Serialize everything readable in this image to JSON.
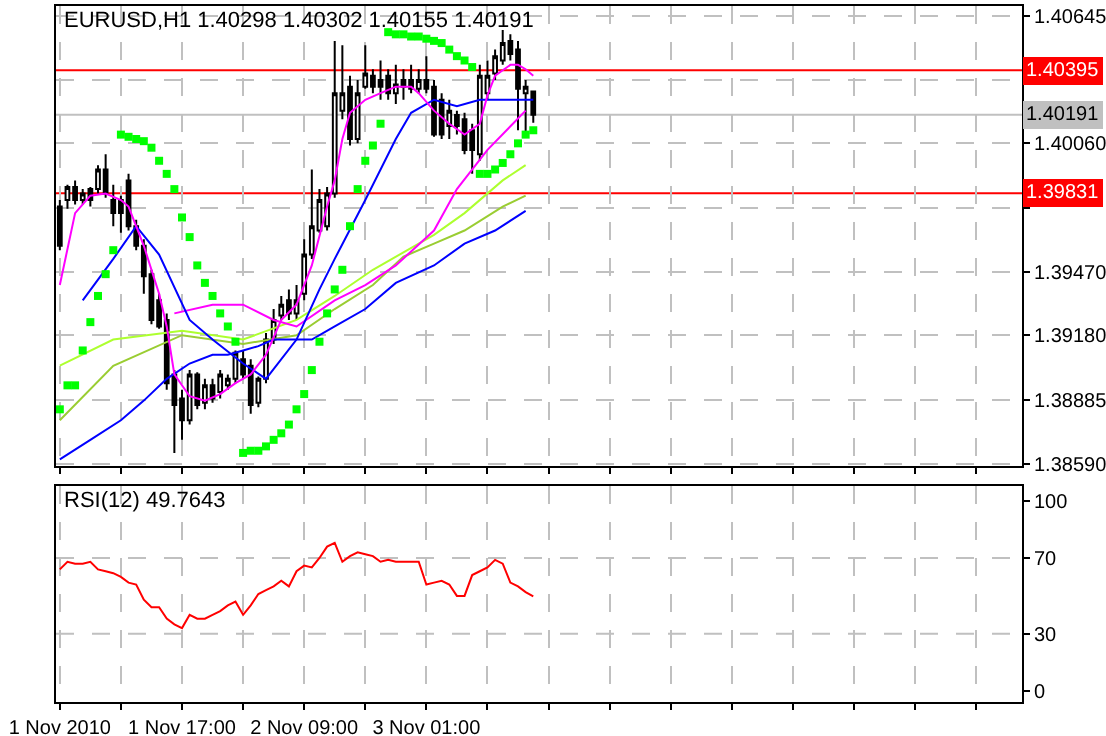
{
  "chart_data": [
    {
      "type": "candlestick",
      "title": "EURUSD,H1 1.40298 1.40302 1.40155 1.40191",
      "color": "#000000",
      "x": [
        "2010-11-01T00:00",
        "2010-11-01T01:00",
        "2010-11-01T02:00",
        "2010-11-01T03:00",
        "2010-11-01T04:00",
        "2010-11-01T05:00",
        "2010-11-01T06:00",
        "2010-11-01T07:00",
        "2010-11-01T08:00",
        "2010-11-01T09:00",
        "2010-11-01T10:00",
        "2010-11-01T11:00",
        "2010-11-01T12:00",
        "2010-11-01T13:00",
        "2010-11-01T14:00",
        "2010-11-01T15:00",
        "2010-11-01T16:00",
        "2010-11-01T17:00",
        "2010-11-01T18:00",
        "2010-11-01T19:00",
        "2010-11-01T20:00",
        "2010-11-01T21:00",
        "2010-11-01T22:00",
        "2010-11-01T23:00",
        "2010-11-02T00:00",
        "2010-11-02T01:00",
        "2010-11-02T02:00",
        "2010-11-02T03:00",
        "2010-11-02T04:00",
        "2010-11-02T05:00",
        "2010-11-02T06:00",
        "2010-11-02T07:00",
        "2010-11-02T08:00",
        "2010-11-02T09:00",
        "2010-11-02T10:00",
        "2010-11-02T11:00",
        "2010-11-02T12:00",
        "2010-11-02T13:00",
        "2010-11-02T14:00",
        "2010-11-02T15:00",
        "2010-11-02T16:00",
        "2010-11-02T17:00",
        "2010-11-02T18:00",
        "2010-11-02T19:00",
        "2010-11-02T20:00",
        "2010-11-02T21:00",
        "2010-11-02T22:00",
        "2010-11-02T23:00",
        "2010-11-03T00:00",
        "2010-11-03T01:00",
        "2010-11-03T02:00",
        "2010-11-03T03:00",
        "2010-11-03T04:00",
        "2010-11-03T05:00",
        "2010-11-03T06:00",
        "2010-11-03T07:00",
        "2010-11-03T08:00",
        "2010-11-03T09:00",
        "2010-11-03T10:00",
        "2010-11-03T11:00",
        "2010-11-03T12:00",
        "2010-11-03T13:00",
        "2010-11-03T14:00"
      ],
      "ohlc": [
        [
          1.3977,
          1.398,
          1.3957,
          1.3959
        ],
        [
          1.398,
          1.3987,
          1.3976,
          1.3986
        ],
        [
          1.3986,
          1.3989,
          1.3978,
          1.398
        ],
        [
          1.398,
          1.3985,
          1.3978,
          1.3983
        ],
        [
          1.3985,
          1.3986,
          1.3977,
          1.398
        ],
        [
          1.3985,
          1.3996,
          1.3983,
          1.3994
        ],
        [
          1.3994,
          1.4001,
          1.3981,
          1.3983
        ],
        [
          1.398,
          1.3987,
          1.3968,
          1.3974
        ],
        [
          1.398,
          1.3982,
          1.3965,
          1.3974
        ],
        [
          1.3989,
          1.3992,
          1.3966,
          1.3968
        ],
        [
          1.3968,
          1.3971,
          1.3957,
          1.3959
        ],
        [
          1.3959,
          1.3962,
          1.3937,
          1.3945
        ],
        [
          1.3946,
          1.3948,
          1.3923,
          1.3925
        ],
        [
          1.3934,
          1.3937,
          1.3921,
          1.3922
        ],
        [
          1.3925,
          1.3928,
          1.3893,
          1.3896
        ],
        [
          1.39,
          1.3902,
          1.3864,
          1.3886
        ],
        [
          1.3889,
          1.3893,
          1.387,
          1.3879
        ],
        [
          1.3879,
          1.3902,
          1.3877,
          1.39
        ],
        [
          1.39,
          1.3901,
          1.3884,
          1.3886
        ],
        [
          1.3887,
          1.3898,
          1.3884,
          1.3895
        ],
        [
          1.3895,
          1.3898,
          1.3887,
          1.3889
        ],
        [
          1.3892,
          1.3902,
          1.3889,
          1.39
        ],
        [
          1.3895,
          1.39,
          1.3893,
          1.3898
        ],
        [
          1.3898,
          1.3911,
          1.3896,
          1.391
        ],
        [
          1.3907,
          1.3911,
          1.3898,
          1.39
        ],
        [
          1.3904,
          1.3907,
          1.3882,
          1.3886
        ],
        [
          1.3887,
          1.3899,
          1.3885,
          1.3898
        ],
        [
          1.3898,
          1.3919,
          1.3896,
          1.3916
        ],
        [
          1.3916,
          1.393,
          1.3914,
          1.3925
        ],
        [
          1.3927,
          1.3936,
          1.3925,
          1.3932
        ],
        [
          1.3934,
          1.3939,
          1.3925,
          1.3928
        ],
        [
          1.3928,
          1.3941,
          1.3925,
          1.3934
        ],
        [
          1.3937,
          1.3962,
          1.3934,
          1.3955
        ],
        [
          1.3955,
          1.3994,
          1.3953,
          1.3968
        ],
        [
          1.3966,
          1.3985,
          1.3965,
          1.398
        ],
        [
          1.3968,
          1.3986,
          1.3966,
          1.3983
        ],
        [
          1.3983,
          1.4053,
          1.3981,
          1.4029
        ],
        [
          1.4021,
          1.4051,
          1.4017,
          1.4029
        ],
        [
          1.4032,
          1.4037,
          1.4005,
          1.4008
        ],
        [
          1.4008,
          1.4035,
          1.4006,
          1.4029
        ],
        [
          1.4032,
          1.4051,
          1.4031,
          1.4038
        ],
        [
          1.4037,
          1.404,
          1.4029,
          1.4032
        ],
        [
          1.4035,
          1.4044,
          1.4026,
          1.4032
        ],
        [
          1.4037,
          1.404,
          1.4026,
          1.4029
        ],
        [
          1.4029,
          1.4042,
          1.4024,
          1.4033
        ],
        [
          1.4035,
          1.404,
          1.4026,
          1.4032
        ],
        [
          1.4035,
          1.4042,
          1.4029,
          1.4031
        ],
        [
          1.4031,
          1.404,
          1.4029,
          1.4035
        ],
        [
          1.4035,
          1.4046,
          1.4029,
          1.4031
        ],
        [
          1.4032,
          1.4035,
          1.4009,
          1.401
        ],
        [
          1.4026,
          1.4029,
          1.4008,
          1.401
        ],
        [
          1.4014,
          1.4026,
          1.4008,
          1.4021
        ],
        [
          1.4019,
          1.4021,
          1.401,
          1.4014
        ],
        [
          1.4017,
          1.402,
          1.4001,
          1.4003
        ],
        [
          1.4012,
          1.4015,
          1.3992,
          1.4003
        ],
        [
          1.4001,
          1.4042,
          1.3998,
          1.4037
        ],
        [
          1.4029,
          1.4044,
          1.4026,
          1.4037
        ],
        [
          1.4038,
          1.4049,
          1.4035,
          1.4046
        ],
        [
          1.4044,
          1.4058,
          1.4042,
          1.4052
        ],
        [
          1.4053,
          1.4056,
          1.4044,
          1.4047
        ],
        [
          1.4049,
          1.4053,
          1.4012,
          1.4031
        ],
        [
          1.4029,
          1.4035,
          1.401,
          1.4032
        ],
        [
          1.40298,
          1.40302,
          1.40155,
          1.40191
        ]
      ],
      "series": [
        {
          "type": "line",
          "color": "#9acd32",
          "x": [
            "2010-11-01T00:00",
            "2010-11-01T07:00",
            "2010-11-01T16:00",
            "2010-11-02T00:00",
            "2010-11-02T07:00",
            "2010-11-02T12:00",
            "2010-11-02T17:00",
            "2010-11-02T21:00",
            "2010-11-03T01:00",
            "2010-11-03T05:00",
            "2010-11-03T10:00",
            "2010-11-03T13:00"
          ],
          "values": [
            1.3879,
            1.3904,
            1.3918,
            1.3914,
            1.3918,
            1.393,
            1.3941,
            1.3954,
            1.396,
            1.3966,
            1.3977,
            1.3982
          ]
        },
        {
          "type": "line",
          "color": "#adff2f",
          "x": [
            "2010-11-01T00:00",
            "2010-11-01T07:00",
            "2010-11-01T16:00",
            "2010-11-02T00:00",
            "2010-11-02T07:00",
            "2010-11-02T12:00",
            "2010-11-02T17:00",
            "2010-11-02T21:00",
            "2010-11-03T01:00",
            "2010-11-03T05:00",
            "2010-11-03T10:00",
            "2010-11-03T13:00"
          ],
          "values": [
            1.3904,
            1.3916,
            1.392,
            1.3916,
            1.3925,
            1.3936,
            1.3948,
            1.3956,
            1.3964,
            1.3974,
            1.3989,
            1.3996
          ]
        },
        {
          "type": "line",
          "color": "#0000ff",
          "x": [
            "2010-11-01T00:00",
            "2010-11-01T04:00",
            "2010-11-01T08:00",
            "2010-11-01T11:00",
            "2010-11-01T14:00",
            "2010-11-01T17:00",
            "2010-11-01T20:00",
            "2010-11-01T22:00",
            "2010-11-02T00:00",
            "2010-11-02T02:00",
            "2010-11-02T04:00",
            "2010-11-02T06:00",
            "2010-11-02T09:00",
            "2010-11-02T12:00",
            "2010-11-02T16:00",
            "2010-11-02T20:00",
            "2010-11-03T01:00",
            "2010-11-03T05:00",
            "2010-11-03T09:00",
            "2010-11-03T13:00"
          ],
          "values": [
            1.3861,
            1.387,
            1.3879,
            1.3888,
            1.3898,
            1.3905,
            1.3909,
            1.3909,
            1.3911,
            1.3913,
            1.3916,
            1.3916,
            1.3916,
            1.3922,
            1.393,
            1.3942,
            1.395,
            1.396,
            1.3966,
            1.3975
          ]
        },
        {
          "type": "line",
          "color": "#ff00ff",
          "x": [
            "2010-11-01T15:00",
            "2010-11-01T20:00",
            "2010-11-02T00:00",
            "2010-11-02T04:00",
            "2010-11-02T07:00",
            "2010-11-02T12:00",
            "2010-11-02T16:00",
            "2010-11-02T20:00",
            "2010-11-03T01:00",
            "2010-11-03T04:00",
            "2010-11-03T08:00",
            "2010-11-03T13:00"
          ],
          "values": [
            1.3928,
            1.3932,
            1.3932,
            1.3925,
            1.3922,
            1.3934,
            1.3941,
            1.395,
            1.3966,
            1.3985,
            1.4003,
            1.4021
          ]
        },
        {
          "type": "line",
          "color": "#0000ff",
          "x": [
            "2010-11-01T03:00",
            "2010-11-01T07:00",
            "2010-11-01T10:00",
            "2010-11-01T13:00",
            "2010-11-01T17:00",
            "2010-11-01T20:00",
            "2010-11-02T00:00",
            "2010-11-02T03:00",
            "2010-11-02T07:00",
            "2010-11-02T10:00",
            "2010-11-02T12:00",
            "2010-11-02T16:00",
            "2010-11-02T20:00",
            "2010-11-02T22:00",
            "2010-11-03T01:00",
            "2010-11-03T04:00",
            "2010-11-03T07:00",
            "2010-11-03T10:00",
            "2010-11-03T14:00"
          ],
          "values": [
            1.3934,
            1.3953,
            1.3968,
            1.3955,
            1.3925,
            1.3916,
            1.3905,
            1.3898,
            1.3916,
            1.3939,
            1.3953,
            1.398,
            1.4008,
            1.402,
            1.4026,
            1.4023,
            1.4026,
            1.4026,
            1.4026
          ]
        },
        {
          "type": "line",
          "color": "#ff00ff",
          "x": [
            "2010-11-01T00:00",
            "2010-11-01T02:00",
            "2010-11-01T04:00",
            "2010-11-01T06:00",
            "2010-11-01T08:00",
            "2010-11-01T09:00",
            "2010-11-01T11:00",
            "2010-11-01T13:00",
            "2010-11-01T14:00",
            "2010-11-01T15:00",
            "2010-11-01T17:00",
            "2010-11-01T19:00",
            "2010-11-01T21:00",
            "2010-11-01T23:00",
            "2010-11-02T01:00",
            "2010-11-02T03:00",
            "2010-11-02T05:00",
            "2010-11-02T07:00",
            "2010-11-02T09:00",
            "2010-11-02T11:00",
            "2010-11-02T12:00",
            "2010-11-02T13:00",
            "2010-11-02T14:00",
            "2010-11-02T16:00",
            "2010-11-02T18:00",
            "2010-11-02T20:00",
            "2010-11-02T22:00",
            "2010-11-02T23:00",
            "2010-11-03T01:00",
            "2010-11-03T03:00",
            "2010-11-03T05:00",
            "2010-11-03T07:00",
            "2010-11-03T08:00",
            "2010-11-03T09:00",
            "2010-11-03T11:00",
            "2010-11-03T12:00",
            "2010-11-03T13:00",
            "2010-11-03T14:00"
          ],
          "values": [
            1.3941,
            1.3974,
            1.3982,
            1.3983,
            1.398,
            1.3977,
            1.3959,
            1.3937,
            1.3922,
            1.39,
            1.389,
            1.3888,
            1.3891,
            1.3896,
            1.39,
            1.3909,
            1.3925,
            1.3932,
            1.395,
            1.3977,
            1.3989,
            1.4008,
            1.402,
            1.4026,
            1.4029,
            1.4032,
            1.4032,
            1.4029,
            1.4021,
            1.4015,
            1.401,
            1.4015,
            1.4028,
            1.4037,
            1.4042,
            1.4042,
            1.404,
            1.4037
          ]
        },
        {
          "type": "scatter",
          "color": "#00ff00",
          "marker": "square",
          "values": [
            1.3884,
            1.3895,
            1.3895,
            1.3911,
            1.3924,
            1.3936,
            1.3946,
            1.3957,
            1.401,
            1.4009,
            1.4008,
            1.4007,
            1.4004,
            1.3998,
            1.3992,
            1.3985,
            1.3972,
            1.3963,
            1.395,
            1.3942,
            1.3936,
            1.3928,
            1.3922,
            1.3915,
            1.3864,
            1.3865,
            1.3865,
            1.3867,
            1.387,
            1.3873,
            1.3877,
            1.3884,
            1.3891,
            1.3902,
            1.3915,
            1.3928,
            1.3939,
            1.3948,
            1.3968,
            1.3985,
            1.3998,
            1.4005,
            1.4015,
            1.4057,
            1.4056,
            1.4056,
            1.4055,
            1.4055,
            1.4054,
            1.4053,
            1.4052,
            1.4049,
            1.4046,
            1.4044,
            1.4041,
            1.3992,
            1.3992,
            1.3994,
            1.3997,
            1.4001,
            1.4006,
            1.401,
            1.4012
          ]
        }
      ],
      "xlim": [
        "2010-10-31T23:30",
        "2010-11-06T06:00"
      ],
      "xticks": [
        {
          "value": "2010-11-01T00:00",
          "label": null
        },
        {
          "value": "2010-11-01T08:00",
          "label": null
        },
        {
          "value": "2010-11-01T16:00",
          "label": null
        },
        {
          "value": "2010-11-02T00:00",
          "label": null
        },
        {
          "value": "2010-11-02T08:00",
          "label": null
        },
        {
          "value": "2010-11-02T16:00",
          "label": null
        },
        {
          "value": "2010-11-03T00:00",
          "label": null
        },
        {
          "value": "2010-11-03T08:00",
          "label": null
        },
        {
          "value": "2010-11-03T16:00",
          "label": null
        },
        {
          "value": "2010-11-04T00:00",
          "label": null
        },
        {
          "value": "2010-11-04T08:00",
          "label": null
        },
        {
          "value": "2010-11-04T16:00",
          "label": null
        },
        {
          "value": "2010-11-05T00:00",
          "label": null
        },
        {
          "value": "2010-11-05T08:00",
          "label": null
        },
        {
          "value": "2010-11-05T16:00",
          "label": null
        },
        {
          "value": "2010-11-06T00:00",
          "label": null
        }
      ],
      "ylim": [
        1.3858,
        1.4069
      ],
      "yticks": [
        1.40645,
        {
          "value": 1.4035,
          "label": null
        },
        {
          "value": 1.4006,
          "label": "1.40060"
        },
        {
          "value": 1.39765,
          "label": null
        },
        {
          "value": 1.3947,
          "label": "1.39470"
        },
        {
          "value": 1.3918,
          "label": "1.39180"
        },
        1.38885,
        {
          "value": 1.3859,
          "label": "1.38590"
        }
      ],
      "ref_lines": [
        {
          "axis": "y",
          "value": 1.40395,
          "label": "1.40395",
          "color": "#ff0000"
        },
        {
          "axis": "y",
          "value": 1.40191,
          "label": "1.40191",
          "color": "#c0c0c0"
        },
        {
          "axis": "y",
          "value": 1.39831,
          "label": "1.39831",
          "color": "#ff0000"
        }
      ],
      "grid": true,
      "tick_labels": "y"
    },
    {
      "type": "line",
      "title": "RSI(12) 49.7643",
      "x": [
        "2010-11-01T00:00",
        "2010-11-01T01:00",
        "2010-11-01T02:00",
        "2010-11-01T03:00",
        "2010-11-01T04:00",
        "2010-11-01T05:00",
        "2010-11-01T06:00",
        "2010-11-01T07:00",
        "2010-11-01T08:00",
        "2010-11-01T09:00",
        "2010-11-01T10:00",
        "2010-11-01T11:00",
        "2010-11-01T12:00",
        "2010-11-01T13:00",
        "2010-11-01T14:00",
        "2010-11-01T15:00",
        "2010-11-01T16:00",
        "2010-11-01T17:00",
        "2010-11-01T18:00",
        "2010-11-01T19:00",
        "2010-11-01T20:00",
        "2010-11-01T21:00",
        "2010-11-01T22:00",
        "2010-11-01T23:00",
        "2010-11-02T00:00",
        "2010-11-02T01:00",
        "2010-11-02T02:00",
        "2010-11-02T03:00",
        "2010-11-02T04:00",
        "2010-11-02T05:00",
        "2010-11-02T06:00",
        "2010-11-02T07:00",
        "2010-11-02T08:00",
        "2010-11-02T09:00",
        "2010-11-02T10:00",
        "2010-11-02T11:00",
        "2010-11-02T12:00",
        "2010-11-02T13:00",
        "2010-11-02T14:00",
        "2010-11-02T15:00",
        "2010-11-02T16:00",
        "2010-11-02T17:00",
        "2010-11-02T18:00",
        "2010-11-02T19:00",
        "2010-11-02T20:00",
        "2010-11-02T21:00",
        "2010-11-02T22:00",
        "2010-11-02T23:00",
        "2010-11-03T00:00",
        "2010-11-03T01:00",
        "2010-11-03T02:00",
        "2010-11-03T03:00",
        "2010-11-03T04:00",
        "2010-11-03T05:00",
        "2010-11-03T06:00",
        "2010-11-03T07:00",
        "2010-11-03T08:00",
        "2010-11-03T09:00",
        "2010-11-03T10:00",
        "2010-11-03T11:00",
        "2010-11-03T12:00",
        "2010-11-03T13:00",
        "2010-11-03T14:00"
      ],
      "series": [
        {
          "color": "#ff0000",
          "values": [
            64,
            68,
            67,
            67,
            68,
            64,
            63,
            62,
            60,
            57,
            56,
            48,
            44,
            44,
            38,
            35,
            33,
            40,
            38,
            38,
            40,
            42,
            45,
            47,
            40,
            45,
            51,
            53,
            55,
            58,
            55,
            63,
            66,
            65,
            70,
            76,
            78,
            68,
            71,
            73,
            72,
            71,
            68,
            69,
            68,
            68,
            68,
            68,
            56,
            57,
            58,
            56,
            50,
            50,
            61,
            63,
            65,
            69,
            67,
            57,
            55,
            52,
            49.7643
          ]
        }
      ],
      "xlim": [
        "2010-10-31T23:30",
        "2010-11-06T06:00"
      ],
      "xticks": [
        {
          "value": "2010-11-01T00:00",
          "label": "1 Nov 2010"
        },
        {
          "value": "2010-11-01T08:00",
          "label": null
        },
        {
          "value": "2010-11-01T16:00",
          "label": "1 Nov 17:00"
        },
        {
          "value": "2010-11-02T00:00",
          "label": null
        },
        {
          "value": "2010-11-02T08:00",
          "label": "2 Nov 09:00"
        },
        {
          "value": "2010-11-02T16:00",
          "label": null
        },
        {
          "value": "2010-11-03T00:00",
          "label": "3 Nov 01:00"
        },
        {
          "value": "2010-11-03T08:00",
          "label": null
        },
        {
          "value": "2010-11-03T16:00",
          "label": null
        },
        {
          "value": "2010-11-04T00:00",
          "label": null
        },
        {
          "value": "2010-11-04T08:00",
          "label": null
        },
        {
          "value": "2010-11-04T16:00",
          "label": null
        },
        {
          "value": "2010-11-05T00:00",
          "label": null
        },
        {
          "value": "2010-11-05T08:00",
          "label": null
        },
        {
          "value": "2010-11-05T16:00",
          "label": null
        },
        {
          "value": "2010-11-06T00:00",
          "label": null
        }
      ],
      "ylim": [
        -6,
        108
      ],
      "yticks": [
        0,
        30,
        70,
        100
      ],
      "ref_lines": [
        {
          "axis": "y",
          "value": 30,
          "color": "#c0c0c0",
          "line_style": "dashed"
        },
        {
          "axis": "y",
          "value": 70,
          "color": "#c0c0c0",
          "line_style": "dashed"
        }
      ],
      "grid": "x"
    }
  ]
}
